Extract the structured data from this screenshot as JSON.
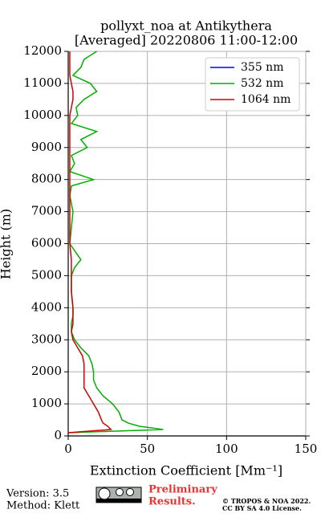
{
  "chart_data": {
    "type": "line",
    "title": "pollyxt_noa at Antikythera",
    "subtitle": "[Averaged] 20220806 11:00-12:00",
    "x_label": "Extinction Coefficient [Mm⁻¹]",
    "y_label": "Height (m)",
    "y": [
      100,
      200,
      300,
      400,
      500,
      750,
      1000,
      1250,
      1500,
      1750,
      2000,
      2250,
      2500,
      2750,
      3000,
      3250,
      3500,
      3750,
      4000,
      4500,
      5000,
      5250,
      5500,
      6000,
      6500,
      7000,
      7500,
      7800,
      8000,
      8250,
      8500,
      8750,
      9000,
      9250,
      9500,
      9750,
      10000,
      10250,
      10500,
      10750,
      11000,
      11250,
      11500,
      11750,
      12000
    ],
    "series": [
      {
        "name": "355 nm",
        "color": "#0000ff",
        "values": [
          null,
          null,
          null,
          null,
          null,
          null,
          null,
          null,
          null,
          null,
          null,
          null,
          null,
          null,
          null,
          null,
          null,
          null,
          null,
          null,
          null,
          null,
          null,
          null,
          null,
          null,
          null,
          null,
          null,
          null,
          null,
          null,
          null,
          null,
          null,
          null,
          null,
          null,
          null,
          null,
          null,
          null,
          null,
          null,
          null
        ]
      },
      {
        "name": "532 nm",
        "color": "#00b000",
        "values": [
          0,
          60,
          45,
          38,
          34,
          32,
          28,
          22,
          18,
          16,
          16,
          15,
          13,
          8,
          4,
          2,
          2,
          3,
          3,
          2,
          2,
          4,
          8,
          1,
          2,
          3,
          1,
          2,
          16,
          1,
          4,
          2,
          12,
          8,
          18,
          2,
          6,
          5,
          10,
          18,
          14,
          3,
          8,
          10,
          18
        ]
      },
      {
        "name": "1064 nm",
        "color": "#d00000",
        "values": [
          0,
          27,
          25,
          22,
          21,
          19,
          16,
          13,
          10,
          10,
          10,
          10,
          9,
          6,
          3,
          2,
          3,
          3,
          3,
          2,
          2,
          2,
          2,
          1,
          1,
          1,
          1,
          1,
          1,
          1,
          1,
          1,
          1,
          1,
          1,
          1,
          1,
          2,
          3,
          3,
          2,
          1,
          1,
          1,
          1
        ]
      }
    ],
    "xlim": [
      0,
      150
    ],
    "xticks": [
      0,
      50,
      100,
      150
    ],
    "ylim": [
      0,
      12000
    ],
    "yticks": [
      0,
      1000,
      2000,
      3000,
      4000,
      5000,
      6000,
      7000,
      8000,
      9000,
      10000,
      11000,
      12000
    ],
    "grid": true,
    "legend": "upper right"
  },
  "footer": {
    "version": "Version: 3.5",
    "method": "Method: Klett",
    "preliminary": [
      "Preliminary",
      "Results."
    ],
    "copyright": "© TROPOS & NOA 2022.",
    "license": "CC BY SA 4.0 License."
  }
}
